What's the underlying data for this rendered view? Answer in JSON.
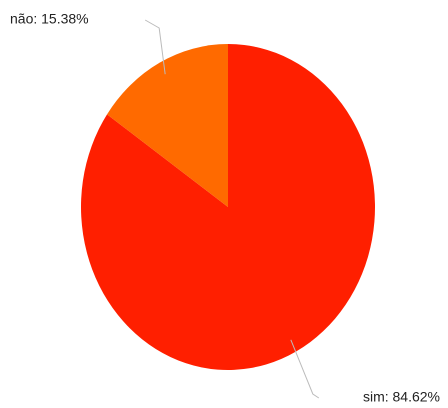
{
  "chart_data": {
    "type": "pie",
    "categories": [
      "sim",
      "não"
    ],
    "values": [
      84.62,
      15.38
    ],
    "value_labels": [
      "sim: 84.62%",
      "não: 15.38%"
    ],
    "colors": [
      "#ff1f00",
      "#ff6a00"
    ]
  }
}
